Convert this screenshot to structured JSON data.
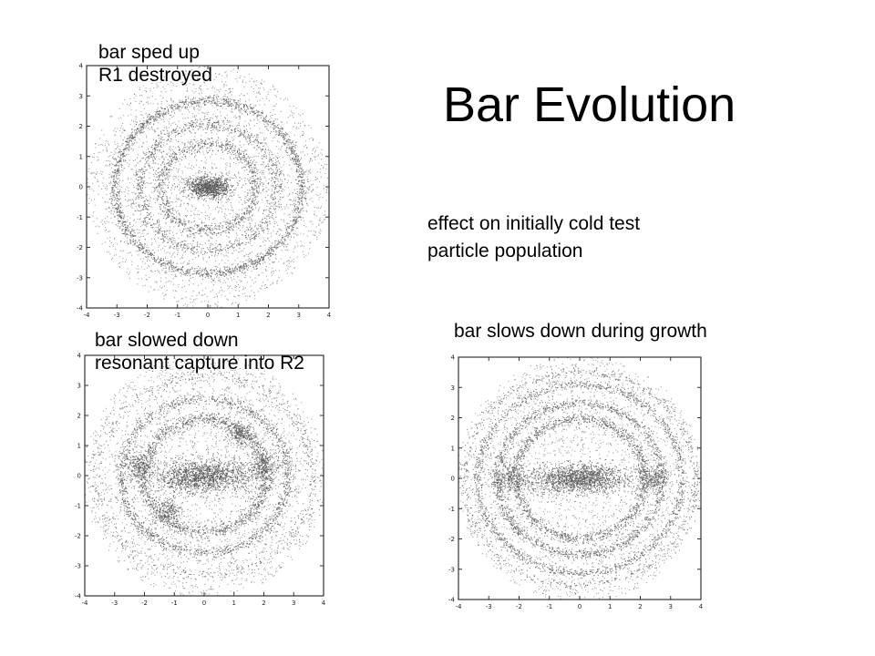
{
  "slide": {
    "title": "Bar Evolution",
    "effect_note": {
      "line1": "effect on initially cold test",
      "line2": "particle population"
    }
  },
  "panels": [
    {
      "id": "top-left",
      "caption_lines": [
        "bar sped up",
        "R1 destroyed"
      ],
      "x_ticks": [
        "-4",
        "-3",
        "-2",
        "-1",
        "0",
        "1",
        "2",
        "3",
        "4"
      ],
      "y_ticks": [
        "4",
        "3",
        "2",
        "1",
        "0",
        "-1",
        "-2",
        "-3",
        "-4"
      ]
    },
    {
      "id": "bottom-left",
      "caption_lines": [
        "bar slowed down",
        "resonant capture into R2"
      ],
      "x_ticks": [
        "-4",
        "-3",
        "-2",
        "-1",
        "0",
        "1",
        "2",
        "3",
        "4"
      ],
      "y_ticks": [
        "4",
        "3",
        "2",
        "1",
        "0",
        "-1",
        "-2",
        "-3",
        "-4"
      ]
    },
    {
      "id": "bottom-right",
      "caption_lines": [
        "bar slows down during growth"
      ],
      "x_ticks": [
        "-4",
        "-3",
        "-2",
        "-1",
        "0",
        "1",
        "2",
        "3",
        "4"
      ],
      "y_ticks": [
        "4",
        "3",
        "2",
        "1",
        "0",
        "-1",
        "-2",
        "-3",
        "-4"
      ]
    }
  ],
  "colors": {
    "background": "#ffffff",
    "text": "#000000",
    "particles": "#555555",
    "frame": "#333333"
  }
}
